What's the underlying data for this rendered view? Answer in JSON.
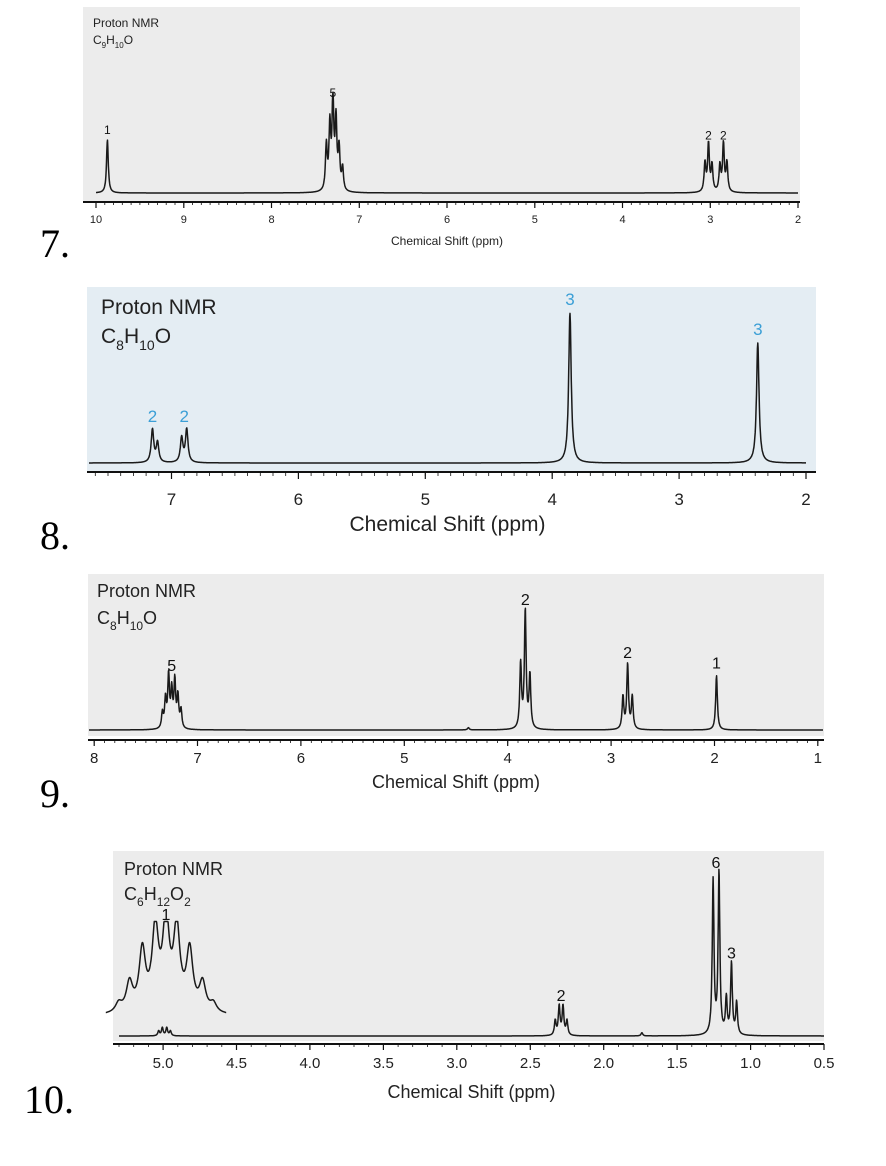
{
  "chart_data": [
    {
      "type": "line",
      "question_number": "7.",
      "title": "Proton NMR",
      "formula": {
        "parts": [
          {
            "t": "C"
          },
          {
            "t": "9",
            "sub": true
          },
          {
            "t": "H"
          },
          {
            "t": "10",
            "sub": true
          },
          {
            "t": "O"
          }
        ]
      },
      "xlabel": "Chemical Shift (ppm)",
      "xlim": [
        10,
        2
      ],
      "reversed_x": true,
      "ticks": [
        10,
        9,
        8,
        7,
        6,
        5,
        4,
        3,
        2
      ],
      "tick_labels": [
        "10",
        "9",
        "8",
        "7",
        "6",
        "5",
        "4",
        "3",
        "2"
      ],
      "peaks": [
        {
          "shift": 9.87,
          "integration": "1",
          "height": 0.56,
          "multiplet": [
            {
              "d": 0,
              "h": 1.0
            }
          ]
        },
        {
          "shift": 7.3,
          "integration": "5",
          "height": 0.95,
          "multiplet": [
            {
              "d": -0.11,
              "h": 0.25
            },
            {
              "d": -0.07,
              "h": 0.45
            },
            {
              "d": -0.035,
              "h": 0.75
            },
            {
              "d": 0.0,
              "h": 1.0
            },
            {
              "d": 0.035,
              "h": 0.7
            },
            {
              "d": 0.075,
              "h": 0.5
            }
          ]
        },
        {
          "shift": 3.02,
          "integration": "2",
          "height": 0.5,
          "multiplet": [
            {
              "d": -0.04,
              "h": 0.55
            },
            {
              "d": 0.0,
              "h": 1.0
            },
            {
              "d": 0.04,
              "h": 0.6
            }
          ]
        },
        {
          "shift": 2.85,
          "integration": "2",
          "height": 0.5,
          "multiplet": [
            {
              "d": -0.04,
              "h": 0.6
            },
            {
              "d": 0.0,
              "h": 1.0
            },
            {
              "d": 0.04,
              "h": 0.55
            }
          ]
        }
      ]
    },
    {
      "type": "line",
      "question_number": "8.",
      "title": "Proton NMR",
      "formula": {
        "parts": [
          {
            "t": "C"
          },
          {
            "t": "8",
            "sub": true
          },
          {
            "t": "H"
          },
          {
            "t": "10",
            "sub": true
          },
          {
            "t": "O"
          }
        ]
      },
      "xlabel": "Chemical Shift (ppm)",
      "xlim": [
        7.65,
        2.0
      ],
      "reversed_x": true,
      "ticks": [
        7,
        6,
        5,
        4,
        3,
        2
      ],
      "tick_labels": [
        "7",
        "6",
        "5",
        "4",
        "3",
        "2"
      ],
      "peaks": [
        {
          "shift": 7.15,
          "integration": "2",
          "height": 0.22,
          "multiplet": [
            {
              "d": -0.04,
              "h": 0.6
            },
            {
              "d": 0.0,
              "h": 1.0
            }
          ]
        },
        {
          "shift": 6.9,
          "integration": "2",
          "height": 0.22,
          "multiplet": [
            {
              "d": -0.02,
              "h": 1.0
            },
            {
              "d": 0.02,
              "h": 0.75
            }
          ]
        },
        {
          "shift": 3.86,
          "integration": "3",
          "height": 1.0,
          "multiplet": [
            {
              "d": 0,
              "h": 1.0
            }
          ]
        },
        {
          "shift": 2.38,
          "integration": "3",
          "height": 0.8,
          "multiplet": [
            {
              "d": 0,
              "h": 1.0
            }
          ]
        }
      ]
    },
    {
      "type": "line",
      "question_number": "9.",
      "title": "Proton NMR",
      "formula": {
        "parts": [
          {
            "t": "C"
          },
          {
            "t": "8",
            "sub": true
          },
          {
            "t": "H"
          },
          {
            "t": "10",
            "sub": true
          },
          {
            "t": "O"
          }
        ]
      },
      "xlabel": "Chemical Shift (ppm)",
      "xlim": [
        8.05,
        0.95
      ],
      "reversed_x": true,
      "ticks": [
        8,
        7,
        6,
        5,
        4,
        3,
        2,
        1
      ],
      "tick_labels": [
        "8",
        "7",
        "6",
        "5",
        "4",
        "3",
        "2",
        "1"
      ],
      "peaks": [
        {
          "shift": 7.25,
          "integration": "5",
          "height": 0.44,
          "multiplet": [
            {
              "d": -0.09,
              "h": 0.35
            },
            {
              "d": -0.06,
              "h": 0.6
            },
            {
              "d": -0.03,
              "h": 0.9
            },
            {
              "d": 0.0,
              "h": 0.7
            },
            {
              "d": 0.03,
              "h": 1.0
            },
            {
              "d": 0.06,
              "h": 0.55
            },
            {
              "d": 0.09,
              "h": 0.3
            }
          ]
        },
        {
          "shift": 4.38,
          "integration": "",
          "height": 0.02,
          "multiplet": [
            {
              "d": 0,
              "h": 1.0
            }
          ]
        },
        {
          "shift": 3.83,
          "integration": "2",
          "height": 1.0,
          "multiplet": [
            {
              "d": -0.045,
              "h": 0.45
            },
            {
              "d": 0.0,
              "h": 1.0
            },
            {
              "d": 0.045,
              "h": 0.55
            }
          ]
        },
        {
          "shift": 2.84,
          "integration": "2",
          "height": 0.55,
          "multiplet": [
            {
              "d": -0.045,
              "h": 0.5
            },
            {
              "d": 0.0,
              "h": 1.0
            },
            {
              "d": 0.045,
              "h": 0.5
            }
          ]
        },
        {
          "shift": 1.98,
          "integration": "1",
          "height": 0.46,
          "multiplet": [
            {
              "d": 0,
              "h": 1.0
            }
          ]
        }
      ]
    },
    {
      "type": "line",
      "question_number": "10.",
      "title": "Proton NMR",
      "formula": {
        "parts": [
          {
            "t": "C"
          },
          {
            "t": "6",
            "sub": true
          },
          {
            "t": "H"
          },
          {
            "t": "12",
            "sub": true
          },
          {
            "t": "O"
          },
          {
            "t": "2",
            "sub": true
          }
        ]
      },
      "xlabel": "Chemical Shift (ppm)",
      "xlim": [
        5.3,
        0.5
      ],
      "reversed_x": true,
      "ticks": [
        5.0,
        4.5,
        4.0,
        3.5,
        3.0,
        2.5,
        2.0,
        1.5,
        1.0,
        0.5
      ],
      "tick_labels": [
        "5.0",
        "4.5",
        "4.0",
        "3.5",
        "3.0",
        "2.5",
        "2.0",
        "1.5",
        "1.0",
        "0.5"
      ],
      "peaks": [
        {
          "shift": 4.99,
          "integration": "1",
          "height": 0.05,
          "multiplet": [
            {
              "d": -0.04,
              "h": 0.6
            },
            {
              "d": -0.015,
              "h": 1.0
            },
            {
              "d": 0.015,
              "h": 1.0
            },
            {
              "d": 0.04,
              "h": 0.6
            }
          ]
        },
        {
          "shift": 2.29,
          "integration": "2",
          "height": 0.18,
          "multiplet": [
            {
              "d": -0.04,
              "h": 0.5
            },
            {
              "d": -0.013,
              "h": 1.0
            },
            {
              "d": 0.013,
              "h": 1.0
            },
            {
              "d": 0.04,
              "h": 0.5
            }
          ]
        },
        {
          "shift": 1.74,
          "integration": "",
          "height": 0.02,
          "multiplet": [
            {
              "d": 0,
              "h": 1.0
            }
          ]
        },
        {
          "shift": 1.235,
          "integration": "6",
          "height": 1.0,
          "multiplet": [
            {
              "d": -0.02,
              "h": 1.0
            },
            {
              "d": 0.02,
              "h": 0.95
            }
          ]
        },
        {
          "shift": 1.13,
          "integration": "3",
          "height": 0.44,
          "multiplet": [
            {
              "d": -0.035,
              "h": 0.45
            },
            {
              "d": 0.0,
              "h": 1.0
            },
            {
              "d": 0.035,
              "h": 0.5
            }
          ]
        }
      ],
      "inset": {
        "integration": "1",
        "source_shift": 4.99,
        "multiplet": [
          {
            "d": -0.11,
            "h": 0.1
          },
          {
            "d": -0.085,
            "h": 0.32
          },
          {
            "d": -0.055,
            "h": 0.67
          },
          {
            "d": -0.025,
            "h": 0.9
          },
          {
            "d": 0.0,
            "h": 1.0
          },
          {
            "d": 0.025,
            "h": 0.9
          },
          {
            "d": 0.055,
            "h": 0.67
          },
          {
            "d": 0.085,
            "h": 0.32
          },
          {
            "d": 0.11,
            "h": 0.1
          }
        ]
      }
    }
  ]
}
